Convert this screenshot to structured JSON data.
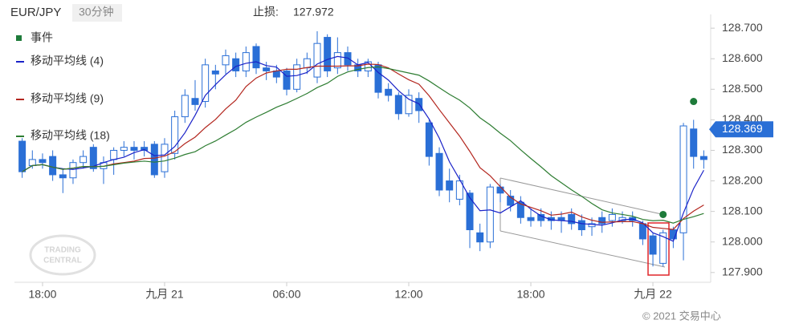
{
  "header": {
    "symbol": "EUR/JPY",
    "interval": "30分钟",
    "stop_label": "止损:",
    "stop_value": 127.972
  },
  "footer": "© 2021 交易中心",
  "watermark": [
    "TRADING",
    "CENTRAL"
  ],
  "chart_data": {
    "type": "candlestick",
    "x": [
      -1,
      -0.5,
      0,
      0.5,
      1,
      1.5,
      2,
      2.5,
      3,
      3.5,
      4,
      4.5,
      5,
      5.5,
      6,
      6.5,
      7,
      7.5,
      8,
      8.5,
      9,
      9.5,
      10,
      10.5,
      11,
      11.5,
      12,
      12.5,
      13,
      13.5,
      14,
      14.5,
      15,
      15.5,
      16,
      16.5,
      17,
      17.5,
      18,
      18.5,
      19,
      19.5,
      20,
      20.5,
      21,
      21.5,
      22,
      22.5,
      23,
      23.5,
      24,
      24.5,
      25,
      25.5,
      26,
      26.5,
      27,
      27.5,
      28,
      28.5,
      29,
      29.5,
      30,
      30.5,
      31,
      31.5,
      32,
      32.5
    ],
    "open": [
      128.33,
      128.25,
      128.27,
      128.28,
      128.22,
      128.21,
      128.26,
      128.31,
      128.24,
      128.27,
      128.3,
      128.31,
      128.31,
      128.32,
      128.23,
      128.29,
      128.41,
      128.47,
      128.46,
      128.56,
      128.58,
      128.6,
      128.56,
      128.64,
      128.57,
      128.56,
      128.56,
      128.5,
      128.57,
      128.54,
      128.67,
      128.57,
      128.62,
      128.58,
      128.56,
      128.58,
      128.5,
      128.48,
      128.42,
      128.47,
      128.39,
      128.29,
      128.2,
      128.14,
      128.16,
      128.03,
      128.0,
      128.18,
      128.15,
      128.13,
      128.08,
      128.09,
      128.08,
      128.08,
      128.09,
      128.07,
      128.05,
      128.08,
      128.07,
      128.07,
      128.08,
      128.06,
      128.02,
      127.93,
      128.04,
      128.03,
      128.37,
      128.28
    ],
    "high": [
      128.34,
      128.3,
      128.29,
      128.3,
      128.24,
      128.27,
      128.3,
      128.32,
      128.28,
      128.31,
      128.33,
      128.33,
      128.33,
      128.33,
      128.34,
      128.43,
      128.5,
      128.53,
      128.6,
      128.58,
      128.63,
      128.62,
      128.64,
      128.65,
      128.59,
      128.58,
      128.57,
      128.6,
      128.62,
      128.69,
      128.68,
      128.67,
      128.64,
      128.6,
      128.6,
      128.59,
      128.52,
      128.49,
      128.5,
      128.49,
      128.4,
      128.31,
      128.24,
      128.22,
      128.17,
      128.06,
      128.19,
      128.19,
      128.17,
      128.15,
      128.11,
      128.11,
      128.1,
      128.1,
      128.11,
      128.09,
      128.08,
      128.1,
      128.11,
      128.1,
      128.1,
      128.07,
      128.03,
      128.04,
      128.05,
      128.39,
      128.4,
      128.3
    ],
    "low": [
      128.21,
      128.24,
      128.24,
      128.2,
      128.16,
      128.19,
      128.24,
      128.23,
      128.19,
      128.22,
      128.28,
      128.27,
      128.28,
      128.21,
      128.21,
      128.27,
      128.39,
      128.43,
      128.44,
      128.5,
      128.55,
      128.54,
      128.54,
      128.55,
      128.53,
      128.52,
      128.48,
      128.49,
      128.55,
      128.52,
      128.54,
      128.55,
      128.56,
      128.54,
      128.54,
      128.47,
      128.46,
      128.4,
      128.41,
      128.39,
      128.25,
      128.15,
      128.13,
      128.12,
      127.98,
      127.97,
      127.98,
      128.13,
      128.1,
      128.06,
      128.05,
      128.05,
      128.04,
      128.03,
      128.04,
      128.02,
      128.02,
      128.03,
      128.05,
      128.06,
      128.05,
      127.99,
      127.92,
      127.92,
      127.98,
      127.94,
      128.24,
      128.24
    ],
    "close": [
      128.23,
      128.27,
      128.26,
      128.22,
      128.21,
      128.26,
      128.28,
      128.24,
      128.26,
      128.3,
      128.31,
      128.3,
      128.3,
      128.22,
      128.32,
      128.41,
      128.48,
      128.45,
      128.58,
      128.55,
      128.61,
      128.56,
      128.62,
      128.57,
      128.56,
      128.54,
      128.5,
      128.58,
      128.6,
      128.65,
      128.56,
      128.62,
      128.58,
      128.56,
      128.59,
      128.49,
      128.48,
      128.42,
      128.48,
      128.43,
      128.28,
      128.17,
      128.17,
      128.2,
      128.04,
      128.0,
      128.18,
      128.16,
      128.12,
      128.08,
      128.07,
      128.07,
      128.07,
      128.07,
      128.06,
      128.04,
      128.06,
      128.06,
      128.09,
      128.08,
      128.07,
      128.01,
      127.96,
      128.03,
      128.01,
      128.38,
      128.28,
      128.27
    ],
    "up_color": "#2a6fd6",
    "down_color": "#2a6fd6",
    "moving_averages": [
      {
        "name": "移动平均线 (4)",
        "period": 4,
        "color": "#1a22c8"
      },
      {
        "name": "移动平均线 (9)",
        "period": 9,
        "color": "#b3261e"
      },
      {
        "name": "移动平均线 (18)",
        "period": 18,
        "color": "#2e7d32"
      }
    ],
    "events": {
      "name": "事件",
      "color": "#1e7b3a",
      "x": [
        30.5,
        32
      ],
      "values": [
        128.09,
        128.46
      ]
    },
    "current_price": 128.369,
    "xlim": [
      -1.38,
      32.84
    ],
    "xticks": [
      {
        "value": 0,
        "label": "18:00"
      },
      {
        "value": 6,
        "label": "九月 21"
      },
      {
        "value": 12,
        "label": "06:00"
      },
      {
        "value": 18,
        "label": "12:00"
      },
      {
        "value": 24,
        "label": "18:00"
      },
      {
        "value": 30,
        "label": "九月 22"
      }
    ],
    "ylim": [
      127.868,
      128.745
    ],
    "yticks": [
      {
        "value": 127.9,
        "label": "127.900"
      },
      {
        "value": 128,
        "label": "128.000"
      },
      {
        "value": 128.1,
        "label": "128.100"
      },
      {
        "value": 128.2,
        "label": "128.200"
      },
      {
        "value": 128.3,
        "label": "128.300"
      },
      {
        "value": 128.4,
        "label": "128.400"
      },
      {
        "value": 128.5,
        "label": "128.500"
      },
      {
        "value": 128.6,
        "label": "128.600"
      },
      {
        "value": 128.7,
        "label": "128.700"
      }
    ]
  }
}
